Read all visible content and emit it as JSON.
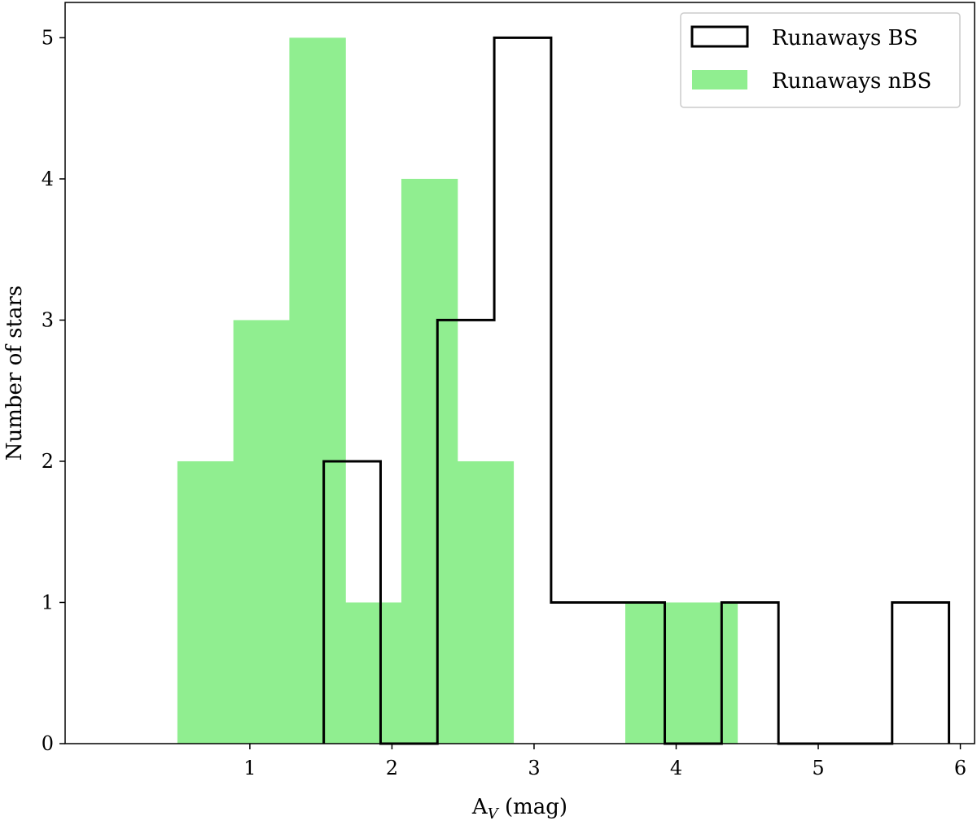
{
  "chart_data": {
    "type": "histogram",
    "xlabel": "A",
    "xlabel_subscript": "V",
    "xlabel_unit": " (mag)",
    "ylabel": "Number of stars",
    "xlim": [
      -0.3,
      6.1
    ],
    "ylim": [
      0,
      5.25
    ],
    "xticks": [
      1,
      2,
      3,
      4,
      5,
      6
    ],
    "yticks": [
      0,
      1,
      2,
      3,
      4,
      5
    ],
    "legend_position": "top-right",
    "series": [
      {
        "name": "Runaways nBS",
        "style": "filled",
        "color": "#90EE90",
        "bin_edges": [
          0.49,
          0.884,
          1.278,
          1.672,
          2.066,
          2.46,
          2.854,
          3.248,
          3.642,
          4.036,
          4.43
        ],
        "counts": [
          2,
          3,
          5,
          1,
          4,
          2,
          0,
          0,
          1,
          1
        ]
      },
      {
        "name": "Runaways BS",
        "style": "step",
        "color": "#000000",
        "bin_edges": [
          1.52,
          1.92,
          2.32,
          2.72,
          3.12,
          3.52,
          3.92,
          4.32,
          4.72,
          5.12,
          5.52,
          5.92
        ],
        "counts": [
          2,
          0,
          3,
          5,
          1,
          1,
          0,
          1,
          0,
          0,
          1
        ]
      }
    ]
  }
}
